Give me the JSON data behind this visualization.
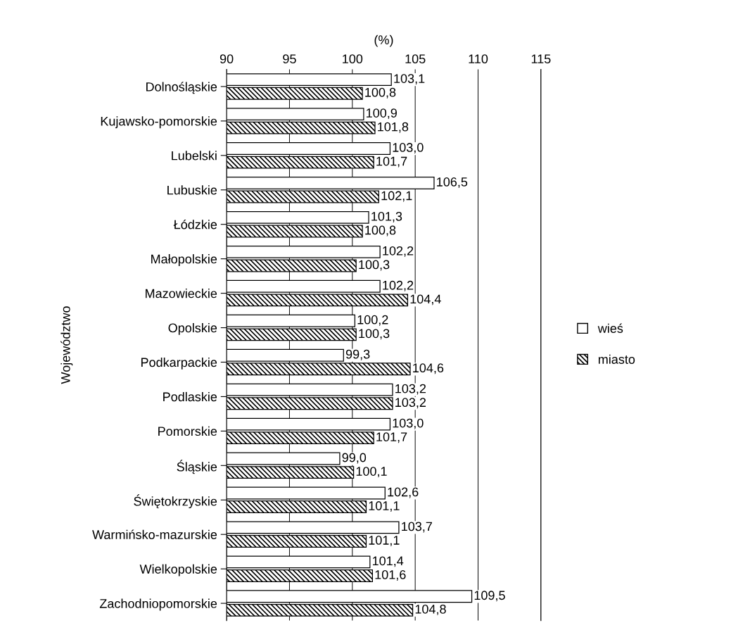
{
  "chart_data": {
    "type": "bar",
    "orientation": "horizontal",
    "xlabel": "(%)",
    "ylabel": "Województwo",
    "categories": [
      "Dolnośląskie",
      "Kujawsko-pomorskie",
      "Lubelski",
      "Lubuskie",
      "Łódzkie",
      "Małopolskie",
      "Mazowieckie",
      "Opolskie",
      "Podkarpackie",
      "Podlaskie",
      "Pomorskie",
      "Śląskie",
      "Świętokrzyskie",
      "Warmińsko-mazurskie",
      "Wielkopolskie",
      "Zachodniopomorskie"
    ],
    "series": [
      {
        "name": "wieś",
        "color": "#ffffff",
        "values": [
          103.1,
          100.9,
          103.0,
          106.5,
          101.3,
          102.2,
          102.2,
          100.2,
          99.3,
          103.2,
          103.0,
          99.0,
          102.6,
          103.7,
          101.4,
          109.5
        ],
        "value_labels": [
          "103,1",
          "100,9",
          "103,0",
          "106,5",
          "101,3",
          "102,2",
          "102,2",
          "100,2",
          "99,3",
          "103,2",
          "103,0",
          "99,0",
          "102,6",
          "103,7",
          "101,4",
          "109,5"
        ]
      },
      {
        "name": "miasto",
        "color": "#000000",
        "values": [
          100.8,
          101.8,
          101.7,
          102.1,
          100.8,
          100.3,
          104.4,
          100.3,
          104.6,
          103.2,
          101.7,
          100.1,
          101.1,
          101.1,
          101.6,
          104.8
        ],
        "value_labels": [
          "100,8",
          "101,8",
          "101,7",
          "102,1",
          "100,8",
          "100,3",
          "104,4",
          "100,3",
          "104,6",
          "103,2",
          "101,7",
          "100,1",
          "101,1",
          "101,1",
          "101,6",
          "104,8"
        ]
      }
    ],
    "xlim": [
      90,
      115
    ],
    "xticks": [
      90,
      95,
      100,
      105,
      110,
      115
    ],
    "grid": "x",
    "legend": "right"
  }
}
